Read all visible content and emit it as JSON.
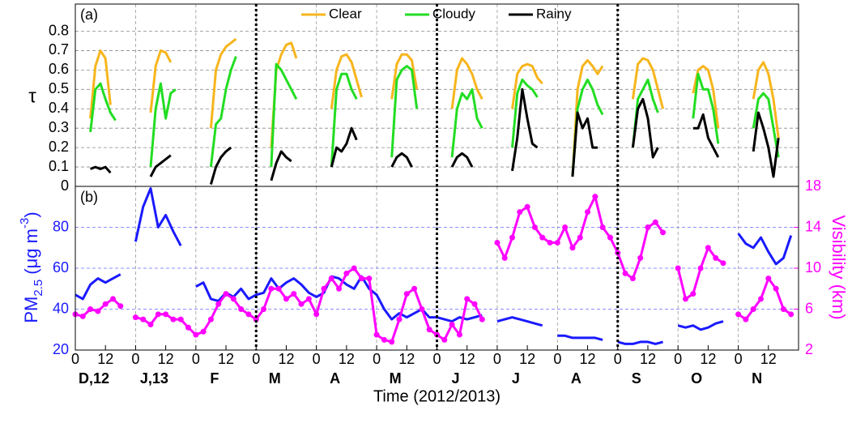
{
  "chart_data": [
    {
      "type": "line",
      "annotation": "(a)",
      "ylabel": "τ",
      "legend": "upper center",
      "grid": true,
      "xlim": [
        0,
        288
      ],
      "ylim": [
        0,
        0.94
      ],
      "yticks": [
        0,
        0.1,
        0.2,
        0.3,
        0.4,
        0.5,
        0.6,
        0.7,
        0.8
      ],
      "x": [
        6,
        8,
        10,
        12,
        14,
        16,
        18,
        23,
        30,
        32,
        34,
        36,
        38,
        40,
        42,
        47,
        54,
        56,
        58,
        60,
        62,
        64,
        66,
        71,
        78,
        80,
        82,
        84,
        86,
        88,
        90,
        95,
        102,
        104,
        106,
        108,
        110,
        112,
        114,
        119,
        126,
        128,
        130,
        132,
        134,
        136,
        138,
        143,
        150,
        152,
        154,
        156,
        158,
        160,
        162,
        167,
        174,
        176,
        178,
        180,
        182,
        184,
        186,
        191,
        198,
        200,
        202,
        204,
        206,
        208,
        210,
        215,
        222,
        224,
        226,
        228,
        230,
        232,
        234,
        239,
        246,
        248,
        250,
        252,
        254,
        256,
        258,
        263,
        270,
        272,
        274,
        276,
        278,
        280,
        282,
        287
      ],
      "series": [
        {
          "name": "Clear",
          "color": "#f7b51c",
          "values": [
            0.35,
            0.62,
            0.7,
            0.66,
            0.42,
            null,
            null,
            null,
            0.38,
            0.62,
            0.7,
            0.69,
            0.64,
            null,
            null,
            null,
            0.3,
            0.6,
            0.68,
            0.72,
            0.74,
            0.76,
            null,
            null,
            0.2,
            0.6,
            0.68,
            0.73,
            0.74,
            0.66,
            null,
            null,
            0.4,
            0.6,
            0.67,
            0.68,
            0.64,
            0.55,
            0.46,
            null,
            0.45,
            0.63,
            0.68,
            0.68,
            0.65,
            0.5,
            null,
            null,
            0.4,
            0.6,
            0.66,
            0.63,
            0.58,
            0.5,
            0.45,
            null,
            0.4,
            0.58,
            0.62,
            0.63,
            0.62,
            0.56,
            0.53,
            null,
            0.05,
            0.5,
            0.62,
            0.65,
            0.62,
            0.58,
            0.62,
            null,
            0.45,
            0.63,
            0.66,
            0.65,
            0.6,
            0.5,
            0.4,
            null,
            0.48,
            0.6,
            0.62,
            0.6,
            0.5,
            0.3,
            null,
            null,
            0.45,
            0.6,
            0.64,
            0.58,
            0.45,
            0.25,
            null,
            null
          ]
        },
        {
          "name": "Cloudy",
          "color": "#22dd22",
          "values": [
            0.28,
            0.5,
            0.53,
            0.45,
            0.38,
            0.34,
            null,
            null,
            0.1,
            0.4,
            0.53,
            0.35,
            0.48,
            0.5,
            null,
            null,
            0.1,
            0.32,
            0.35,
            0.5,
            0.6,
            0.67,
            null,
            null,
            0.1,
            0.63,
            0.6,
            0.55,
            0.5,
            0.45,
            null,
            null,
            0.1,
            0.5,
            0.58,
            0.58,
            0.5,
            0.45,
            null,
            null,
            0.15,
            0.55,
            0.6,
            0.62,
            0.6,
            0.4,
            null,
            null,
            0.15,
            0.4,
            0.48,
            0.45,
            0.5,
            0.35,
            0.3,
            null,
            0.2,
            0.48,
            0.55,
            0.52,
            0.5,
            0.46,
            null,
            null,
            0.05,
            0.4,
            0.5,
            0.55,
            0.5,
            0.42,
            0.37,
            null,
            0.2,
            0.45,
            0.5,
            0.55,
            0.45,
            0.38,
            null,
            null,
            0.35,
            0.58,
            0.5,
            0.5,
            0.4,
            0.22,
            null,
            null,
            0.3,
            0.45,
            0.48,
            0.45,
            0.3,
            0.15,
            null,
            null
          ]
        },
        {
          "name": "Rainy",
          "color": "#000000",
          "values": [
            0.09,
            0.1,
            0.09,
            0.1,
            0.07,
            null,
            null,
            null,
            0.05,
            0.1,
            0.12,
            0.14,
            0.16,
            null,
            null,
            null,
            0.01,
            0.1,
            0.15,
            0.18,
            0.2,
            null,
            null,
            null,
            0.03,
            0.12,
            0.18,
            0.15,
            0.13,
            null,
            null,
            null,
            0.1,
            0.2,
            0.18,
            0.22,
            0.3,
            0.24,
            null,
            null,
            0.1,
            0.15,
            0.17,
            0.15,
            0.1,
            null,
            null,
            null,
            0.1,
            0.15,
            0.17,
            0.15,
            0.1,
            null,
            null,
            null,
            0.08,
            0.25,
            0.5,
            0.35,
            0.22,
            0.2,
            null,
            null,
            0.05,
            0.38,
            0.3,
            0.35,
            0.2,
            0.2,
            null,
            null,
            0.2,
            0.4,
            0.45,
            0.35,
            0.15,
            0.2,
            null,
            null,
            0.3,
            0.3,
            0.37,
            0.25,
            0.2,
            0.15,
            null,
            null,
            0.18,
            0.38,
            0.3,
            0.2,
            0.05,
            0.25,
            null,
            null
          ]
        }
      ]
    },
    {
      "type": "line",
      "annotation": "(b)",
      "ylabel_parts": [
        "PM",
        "2.5",
        " (μg m",
        "-3",
        ")"
      ],
      "y2label": "Visibility (km)",
      "xlabel": "Time (2012/2013)",
      "grid": true,
      "xlim": [
        0,
        288
      ],
      "ylim": [
        20,
        100
      ],
      "y2lim": [
        2,
        18
      ],
      "yticks": [
        20,
        40,
        60,
        80
      ],
      "y2ticks": [
        2,
        6,
        10,
        14,
        18
      ],
      "xticks": [
        {
          "value": 0,
          "label": "0"
        },
        {
          "value": 12,
          "label": "12"
        },
        {
          "value": 24,
          "label": "0"
        },
        {
          "value": 36,
          "label": "12"
        },
        {
          "value": 48,
          "label": "0"
        },
        {
          "value": 60,
          "label": "12"
        },
        {
          "value": 72,
          "label": "0"
        },
        {
          "value": 84,
          "label": "12"
        },
        {
          "value": 96,
          "label": "0"
        },
        {
          "value": 108,
          "label": "12"
        },
        {
          "value": 120,
          "label": "0"
        },
        {
          "value": 132,
          "label": "12"
        },
        {
          "value": 144,
          "label": "0"
        },
        {
          "value": 156,
          "label": "12"
        },
        {
          "value": 168,
          "label": "0"
        },
        {
          "value": 180,
          "label": "12"
        },
        {
          "value": 192,
          "label": "0"
        },
        {
          "value": 204,
          "label": "12"
        },
        {
          "value": 216,
          "label": "0"
        },
        {
          "value": 228,
          "label": "12"
        },
        {
          "value": 240,
          "label": "0"
        },
        {
          "value": 252,
          "label": "12"
        },
        {
          "value": 264,
          "label": "0"
        },
        {
          "value": 276,
          "label": "12"
        }
      ],
      "months": [
        "D,12",
        "J,13",
        "F",
        "M",
        "A",
        "M",
        "J",
        "J",
        "A",
        "S",
        "O",
        "N"
      ],
      "x": [
        0,
        3,
        6,
        9,
        12,
        15,
        18,
        21,
        24,
        27,
        30,
        33,
        36,
        39,
        42,
        45,
        48,
        51,
        54,
        57,
        60,
        63,
        66,
        69,
        72,
        75,
        78,
        81,
        84,
        87,
        90,
        93,
        96,
        99,
        102,
        105,
        108,
        111,
        114,
        117,
        120,
        123,
        126,
        129,
        132,
        135,
        138,
        141,
        144,
        147,
        150,
        153,
        156,
        159,
        162,
        165,
        168,
        171,
        174,
        177,
        180,
        183,
        186,
        189,
        192,
        195,
        198,
        201,
        204,
        207,
        210,
        213,
        216,
        219,
        222,
        225,
        228,
        231,
        234,
        237,
        240,
        243,
        246,
        249,
        252,
        255,
        258,
        261,
        264,
        267,
        270,
        273,
        276,
        279,
        282,
        285
      ],
      "series": [
        {
          "name": "PM2.5",
          "color": "#1a1aff",
          "values": [
            47,
            45,
            52,
            55,
            53,
            55,
            57,
            null,
            73,
            90,
            99,
            80,
            86,
            78,
            71,
            null,
            51,
            53,
            45,
            44,
            48,
            46,
            50,
            45,
            47,
            48,
            55,
            50,
            53,
            55,
            52,
            48,
            46,
            48,
            56,
            55,
            52,
            50,
            56,
            50,
            47,
            40,
            35,
            38,
            36,
            38,
            40,
            36,
            36,
            35,
            34,
            36,
            35,
            36,
            37,
            null,
            34,
            35,
            36,
            35,
            34,
            33,
            32,
            null,
            27,
            27,
            26,
            26,
            26,
            26,
            25,
            null,
            24,
            23,
            23,
            24,
            24,
            23,
            24,
            null,
            32,
            31,
            32,
            30,
            31,
            33,
            34,
            null,
            77,
            72,
            70,
            75,
            68,
            62,
            65,
            76
          ]
        },
        {
          "name": "Visibility",
          "color": "#ff00ff",
          "axis": "y2",
          "values": [
            5.5,
            5.3,
            6,
            5.8,
            6.5,
            7,
            6.3,
            null,
            5.2,
            5,
            4.5,
            5.5,
            5.5,
            5,
            5,
            4.2,
            3.5,
            3.8,
            5,
            6.5,
            7.5,
            7,
            6,
            5.5,
            5,
            6,
            8,
            8,
            7,
            7.5,
            6.5,
            7,
            5.5,
            8,
            9,
            8,
            9.5,
            10,
            9,
            9,
            3.5,
            3,
            2.8,
            5,
            7.5,
            8,
            6,
            4,
            3.5,
            3,
            4.5,
            3.5,
            7,
            6.5,
            5,
            null,
            12.5,
            11,
            13,
            15.5,
            16,
            14,
            13,
            12.5,
            12.5,
            14,
            12,
            13,
            15.5,
            17,
            14,
            13,
            11.5,
            9.5,
            9,
            11,
            14,
            14.5,
            13.5,
            null,
            10,
            7,
            7.5,
            10,
            12,
            11,
            10.5,
            null,
            5.5,
            5,
            6,
            7,
            9,
            8,
            6,
            5.5
          ]
        }
      ]
    }
  ]
}
